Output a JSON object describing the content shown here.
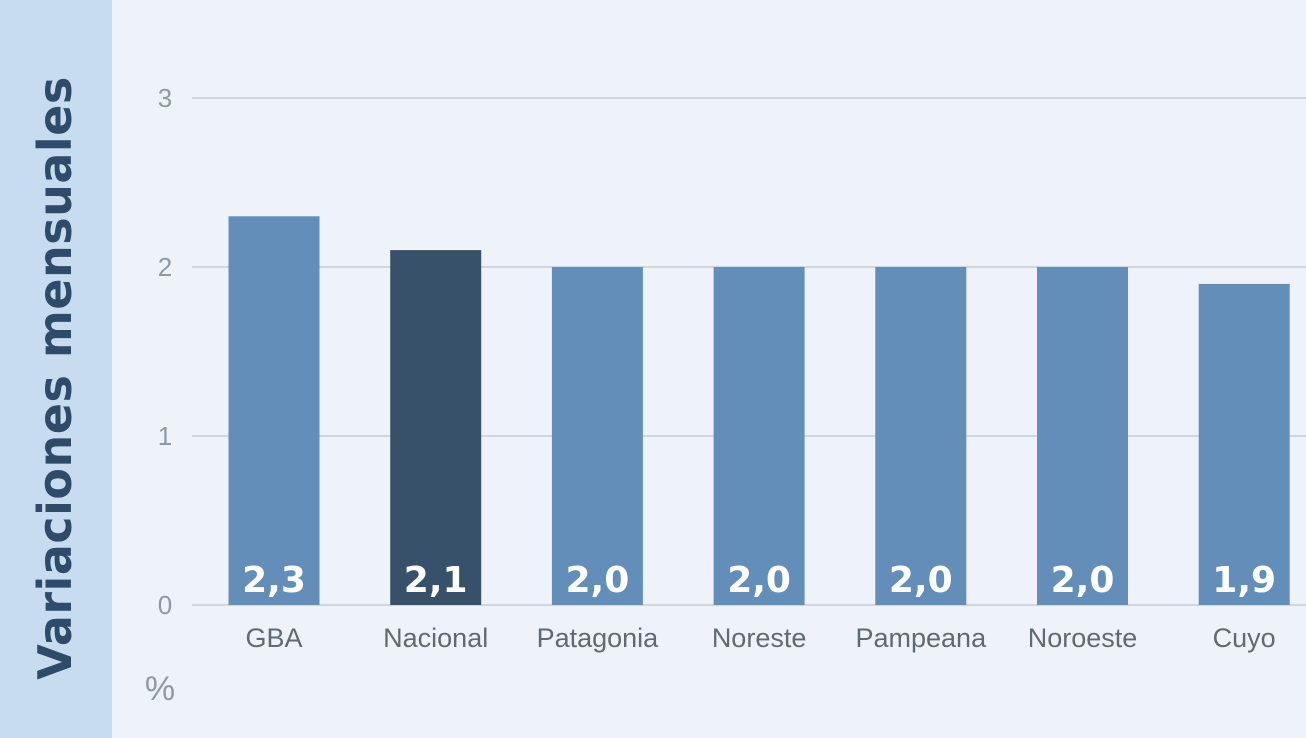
{
  "panel": {
    "title": "Variaciones mensuales"
  },
  "chart_data": {
    "type": "bar",
    "categories": [
      "GBA",
      "Nacional",
      "Patagonia",
      "Noreste",
      "Pampeana",
      "Noroeste",
      "Cuyo"
    ],
    "values": [
      2.3,
      2.1,
      2.0,
      2.0,
      2.0,
      2.0,
      1.9
    ],
    "value_labels": [
      "2,3",
      "2,1",
      "2,0",
      "2,0",
      "2,0",
      "2,0",
      "1,9"
    ],
    "highlight_category": "Nacional",
    "y_ticks": [
      0,
      1,
      2,
      3
    ],
    "ylim": [
      0,
      3
    ],
    "y_unit": "%",
    "grid": true,
    "colors": {
      "bar": "#628eb9",
      "highlight": "#37516b",
      "grid": "#cfd6de"
    }
  }
}
